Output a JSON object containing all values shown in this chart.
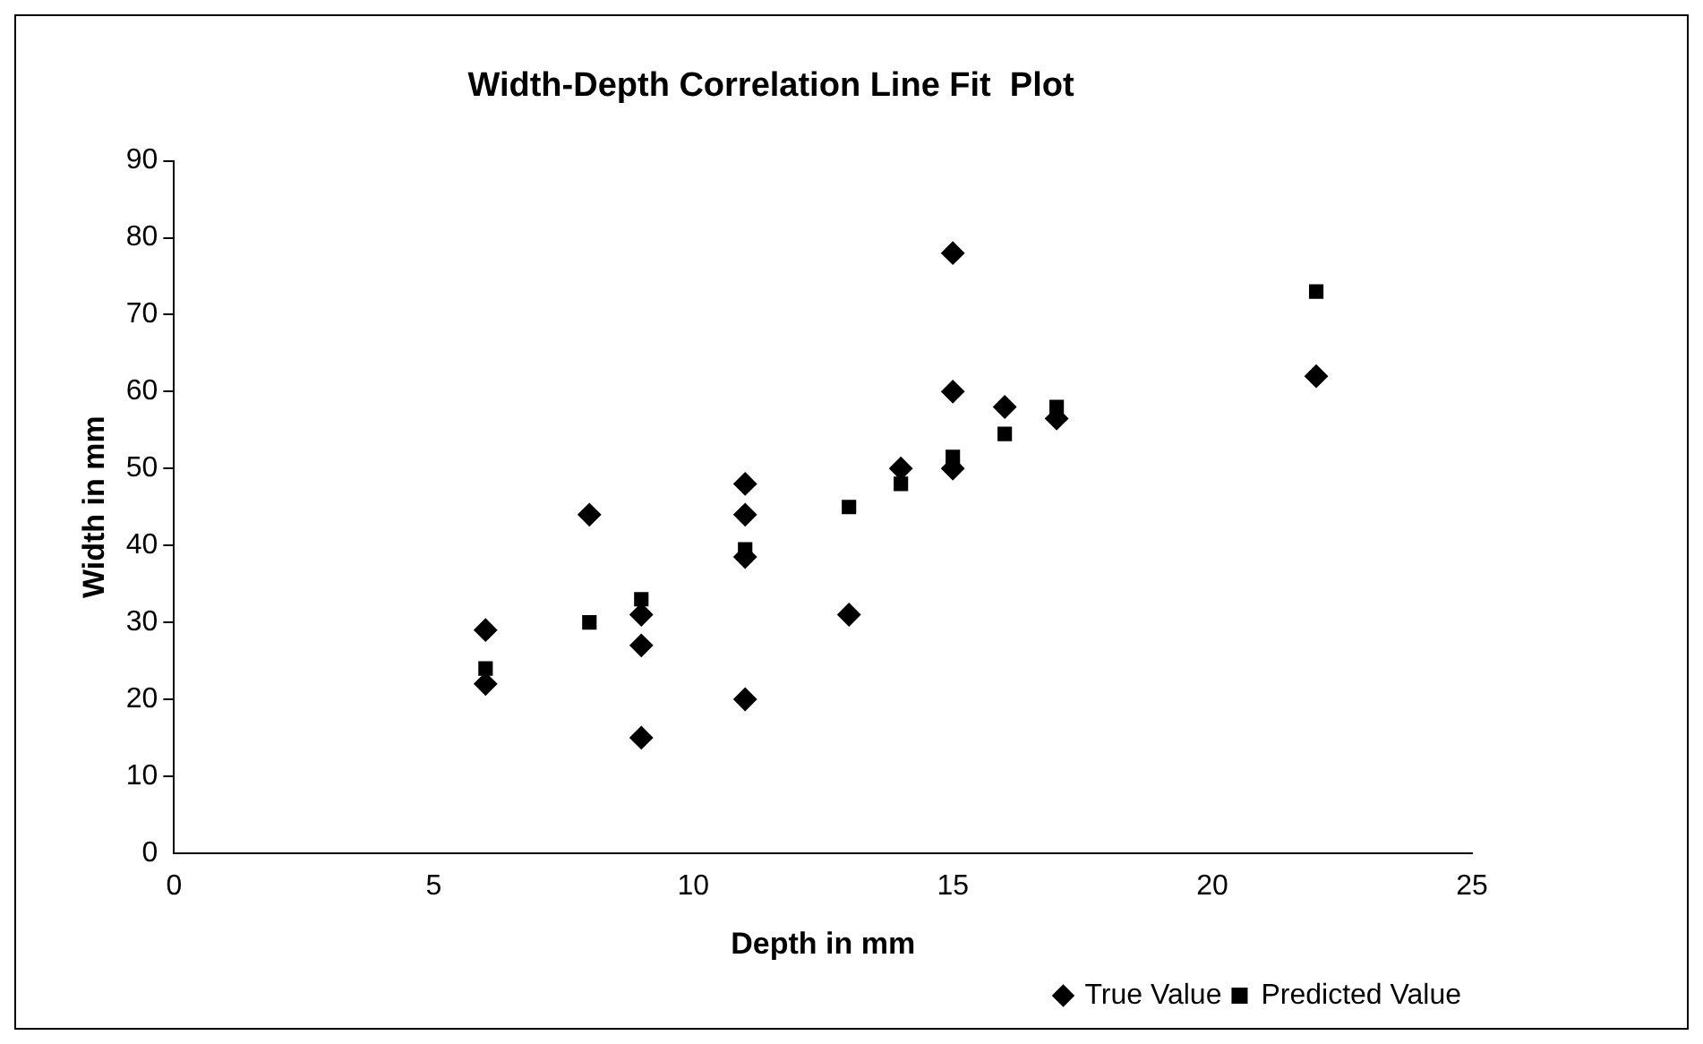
{
  "chart_data": {
    "type": "scatter",
    "title": "Width-Depth Correlation Line Fit  Plot",
    "xlabel": "Depth in mm",
    "ylabel": "Width in mm",
    "xlim": [
      0,
      25
    ],
    "xticks": [
      0,
      5,
      10,
      15,
      20,
      25
    ],
    "ylim": [
      0,
      90
    ],
    "yticks": [
      0,
      10,
      20,
      30,
      40,
      50,
      60,
      70,
      80,
      90
    ],
    "grid": false,
    "legend": "bottom right",
    "series": [
      {
        "name": "True Value",
        "color": "#000000",
        "marker": "diamond",
        "x": [
          6,
          6,
          8,
          9,
          9,
          9,
          11,
          11,
          11,
          11,
          13,
          14,
          15,
          15,
          15,
          16,
          17,
          22
        ],
        "values": [
          29,
          22,
          44,
          31,
          27,
          15,
          48,
          44,
          38.5,
          20,
          31,
          50,
          78,
          60,
          50,
          58,
          56.5,
          62
        ]
      },
      {
        "name": "Predicted Value",
        "color": "#000000",
        "marker": "square",
        "x": [
          6,
          8,
          9,
          11,
          13,
          14,
          15,
          16,
          17,
          22
        ],
        "values": [
          24,
          30,
          33,
          39.5,
          45,
          48,
          51.5,
          54.5,
          58,
          73
        ]
      }
    ]
  }
}
